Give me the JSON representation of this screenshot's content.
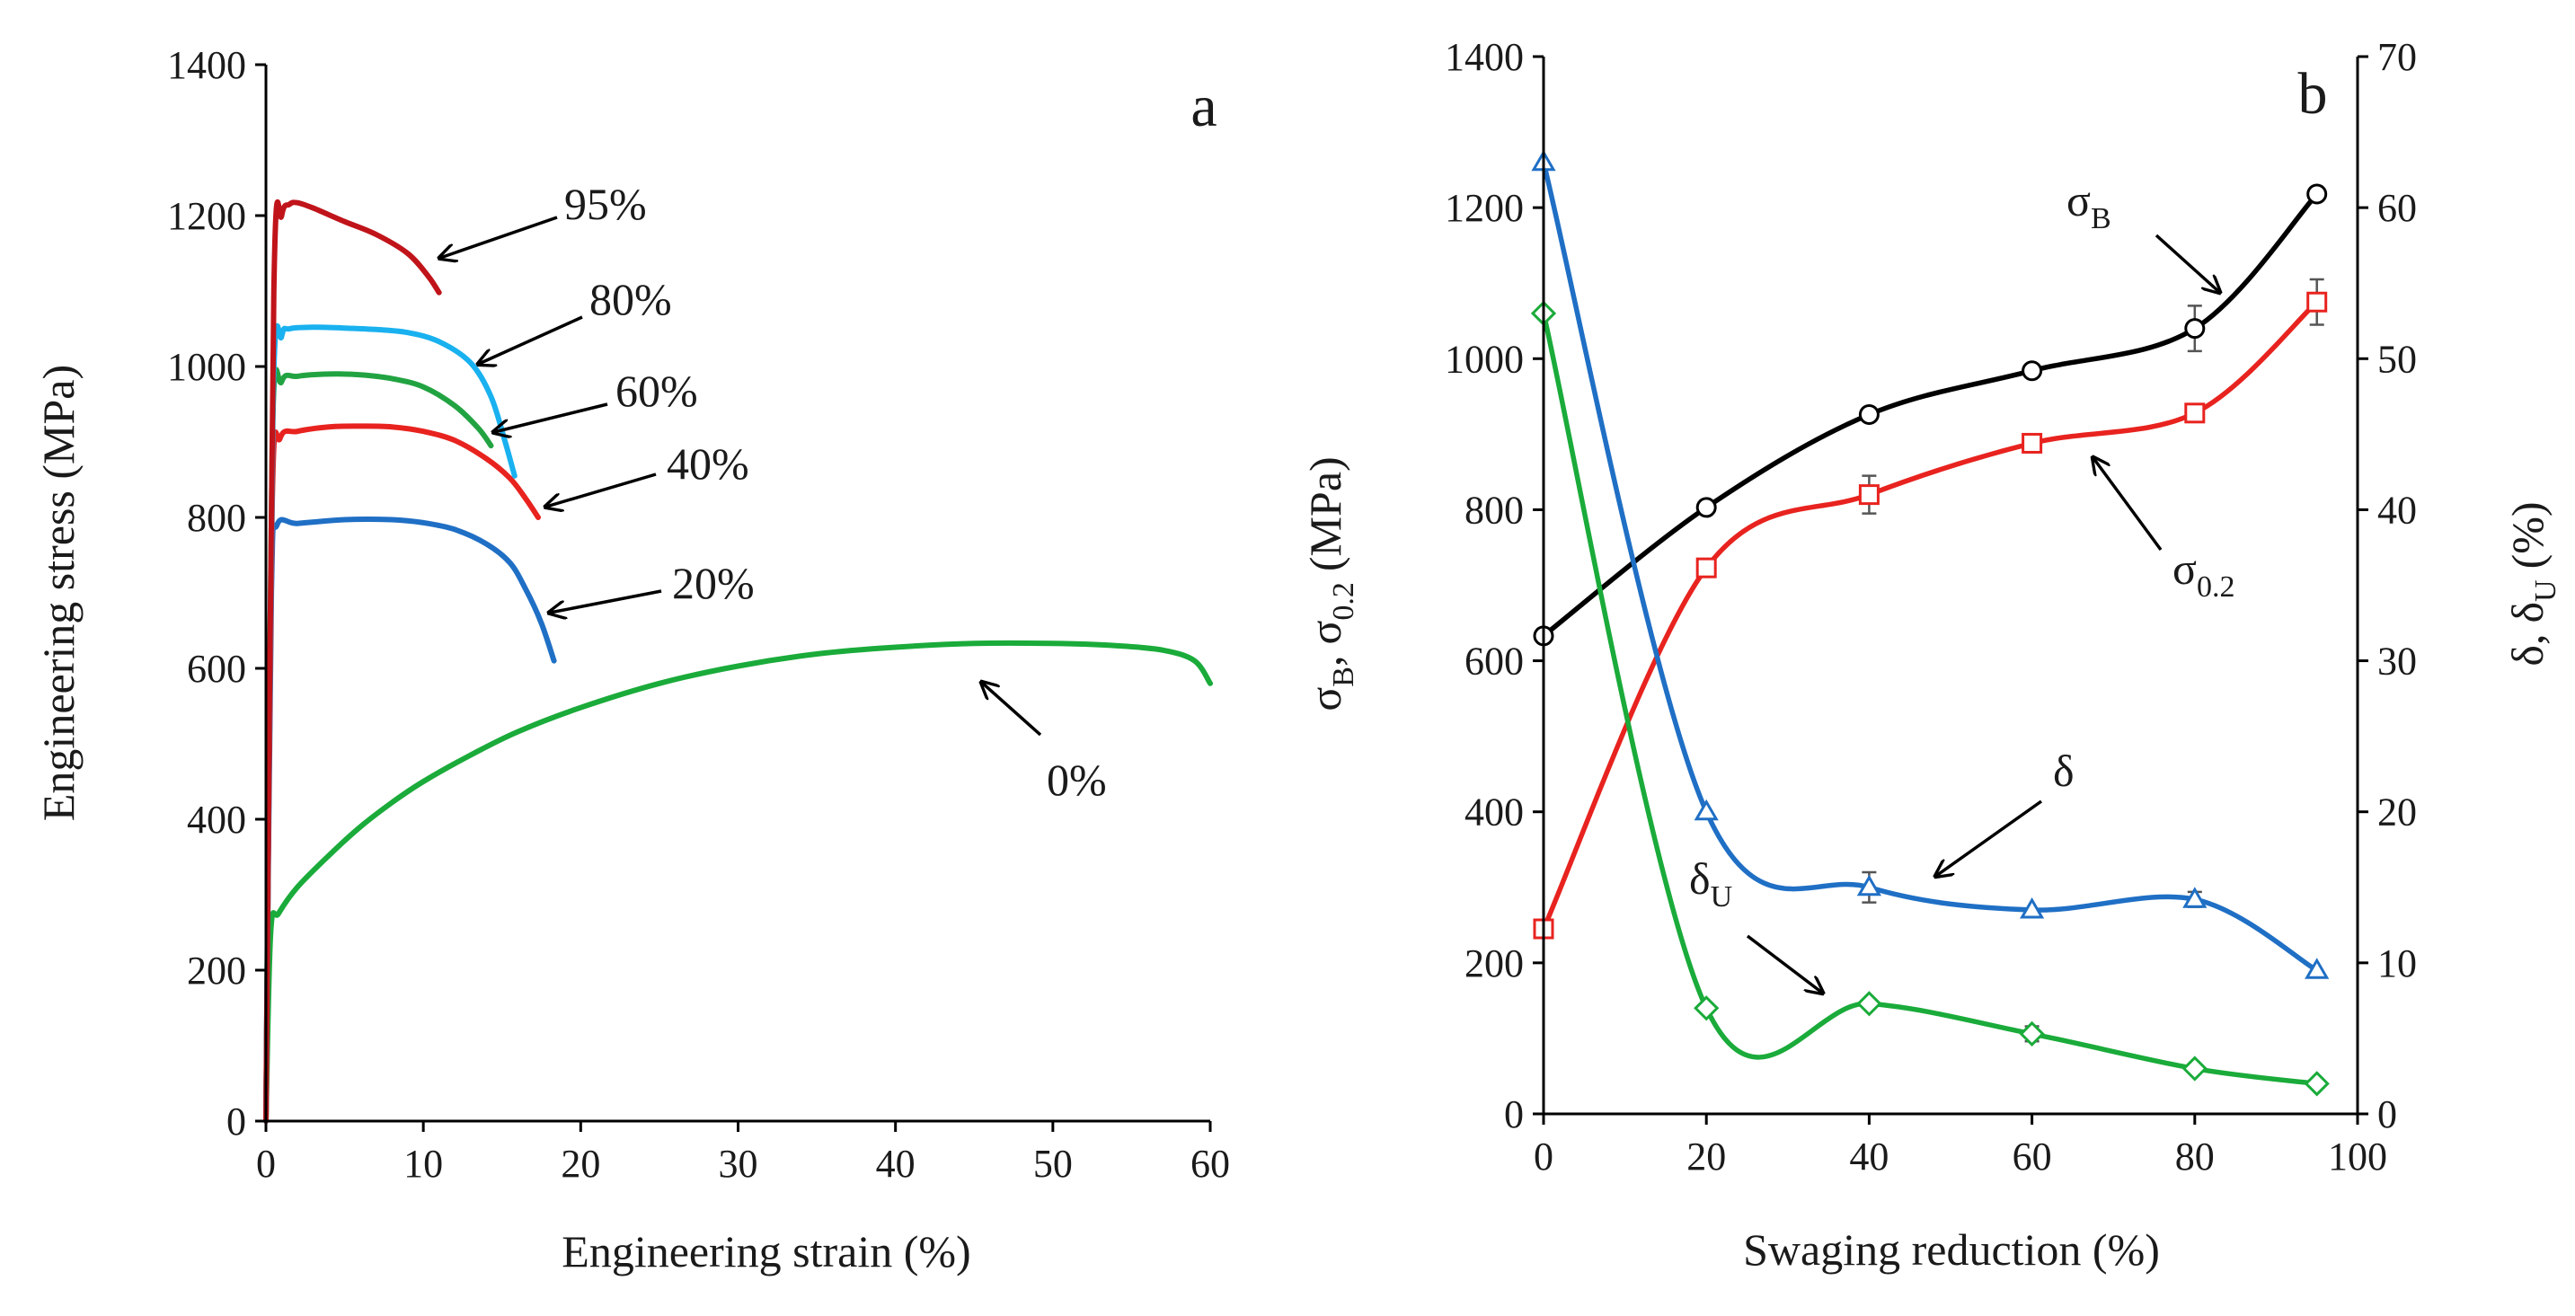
{
  "chart_data": [
    {
      "panel": "a",
      "type": "line",
      "xlabel": "Engineering strain (%)",
      "ylabel": "Engineering stress (MPa)",
      "xlim": [
        0,
        60
      ],
      "ylim": [
        0,
        1400
      ],
      "xticks": [
        "0",
        "10",
        "20",
        "30",
        "40",
        "50",
        "60"
      ],
      "yticks": [
        "0",
        "200",
        "400",
        "600",
        "800",
        "1000",
        "1200",
        "1400"
      ],
      "series": [
        {
          "name": "0%",
          "label": "0%",
          "color": "#1aab3a",
          "x": [
            0,
            0.3,
            0.8,
            2,
            4,
            6,
            8,
            10,
            13,
            16,
            20,
            25,
            30,
            35,
            40,
            45,
            50,
            54,
            57,
            59,
            60
          ],
          "y": [
            0,
            250,
            275,
            310,
            352,
            390,
            422,
            450,
            485,
            516,
            548,
            580,
            603,
            619,
            628,
            633,
            633,
            630,
            624,
            610,
            580
          ]
        },
        {
          "name": "20%",
          "label": "20%",
          "color": "#1f6fc5",
          "x": [
            0,
            0.35,
            0.7,
            2,
            5,
            8,
            10,
            12,
            14,
            15.5,
            16.5,
            17.5,
            18.3
          ],
          "y": [
            0,
            700,
            790,
            792,
            797,
            797,
            793,
            784,
            765,
            740,
            705,
            660,
            610
          ]
        },
        {
          "name": "40%",
          "label": "40%",
          "color": "#e8231f",
          "x": [
            0,
            0.4,
            0.9,
            2,
            4,
            6,
            8,
            10,
            12,
            14,
            15.5,
            16.5,
            17.3
          ],
          "y": [
            0,
            820,
            905,
            914,
            920,
            921,
            920,
            914,
            902,
            878,
            852,
            825,
            800
          ]
        },
        {
          "name": "60%",
          "label": "60%",
          "color": "#22a342",
          "x": [
            0,
            0.4,
            1,
            2,
            4,
            6,
            8,
            10,
            12,
            13.5,
            14.3
          ],
          "y": [
            0,
            900,
            980,
            987,
            990,
            989,
            984,
            973,
            948,
            918,
            895
          ]
        },
        {
          "name": "80%",
          "label": "80%",
          "color": "#19b1ef",
          "x": [
            0,
            0.45,
            1,
            1.5,
            3,
            5,
            7,
            9,
            11,
            13,
            14.3,
            15.2,
            15.8
          ],
          "y": [
            0,
            950,
            1040,
            1050,
            1052,
            1051,
            1049,
            1045,
            1033,
            1005,
            960,
            900,
            855
          ]
        },
        {
          "name": "95%",
          "label": "95%",
          "color": "#c0141a",
          "x": [
            0,
            0.5,
            1,
            1.5,
            2,
            3,
            5,
            7,
            9,
            10.3,
            11
          ],
          "y": [
            0,
            1100,
            1200,
            1215,
            1217,
            1210,
            1192,
            1175,
            1150,
            1120,
            1098
          ]
        }
      ],
      "annotations": [
        "95%",
        "80%",
        "60%",
        "40%",
        "20%",
        "0%"
      ]
    },
    {
      "panel": "b",
      "type": "line",
      "xlabel": "Swaging reduction (%)",
      "ylabel_left": "σB, σ0.2 (MPa)",
      "ylabel_right": "δ, δU (%)",
      "xlim": [
        0,
        100
      ],
      "ylim_left": [
        0,
        1400
      ],
      "ylim_right": [
        0,
        70
      ],
      "xticks": [
        "0",
        "20",
        "40",
        "60",
        "80",
        "100"
      ],
      "yticks_left": [
        "0",
        "200",
        "400",
        "600",
        "800",
        "1000",
        "1200",
        "1400"
      ],
      "yticks_right": [
        "0",
        "10",
        "20",
        "30",
        "40",
        "50",
        "60",
        "70"
      ],
      "x": [
        0,
        20,
        40,
        60,
        80,
        95
      ],
      "series": [
        {
          "name": "σB",
          "axis": "left",
          "marker": "circle",
          "color": "#000000",
          "values": [
            633,
            803,
            926,
            984,
            1040,
            1218
          ],
          "errors": [
            0,
            0,
            0,
            0,
            30,
            0
          ]
        },
        {
          "name": "σ0.2",
          "axis": "left",
          "marker": "square",
          "color": "#e8231f",
          "values": [
            245,
            723,
            820,
            888,
            928,
            1075
          ],
          "errors": [
            0,
            0,
            25,
            12,
            10,
            30
          ]
        },
        {
          "name": "δ",
          "axis": "right",
          "marker": "triangle",
          "color": "#1f6fc5",
          "values": [
            63,
            20,
            15,
            13.5,
            14.2,
            9.5
          ],
          "errors": [
            0,
            0,
            1,
            0,
            0.5,
            0
          ]
        },
        {
          "name": "δU",
          "axis": "right",
          "marker": "diamond",
          "color": "#1aab3a",
          "values": [
            53,
            7,
            7.3,
            5.3,
            3,
            2
          ],
          "errors": [
            0,
            0,
            0,
            0.5,
            0,
            0
          ]
        }
      ]
    }
  ],
  "labels": {
    "panel_a": "a",
    "panel_b": "b",
    "sigma": "σ",
    "delta": "δ",
    "sub_B": "B",
    "sub_02": "0.2",
    "sub_U": "U",
    "comma": ",",
    "units_mpa": "(MPa)",
    "units_pct": "(%)"
  }
}
